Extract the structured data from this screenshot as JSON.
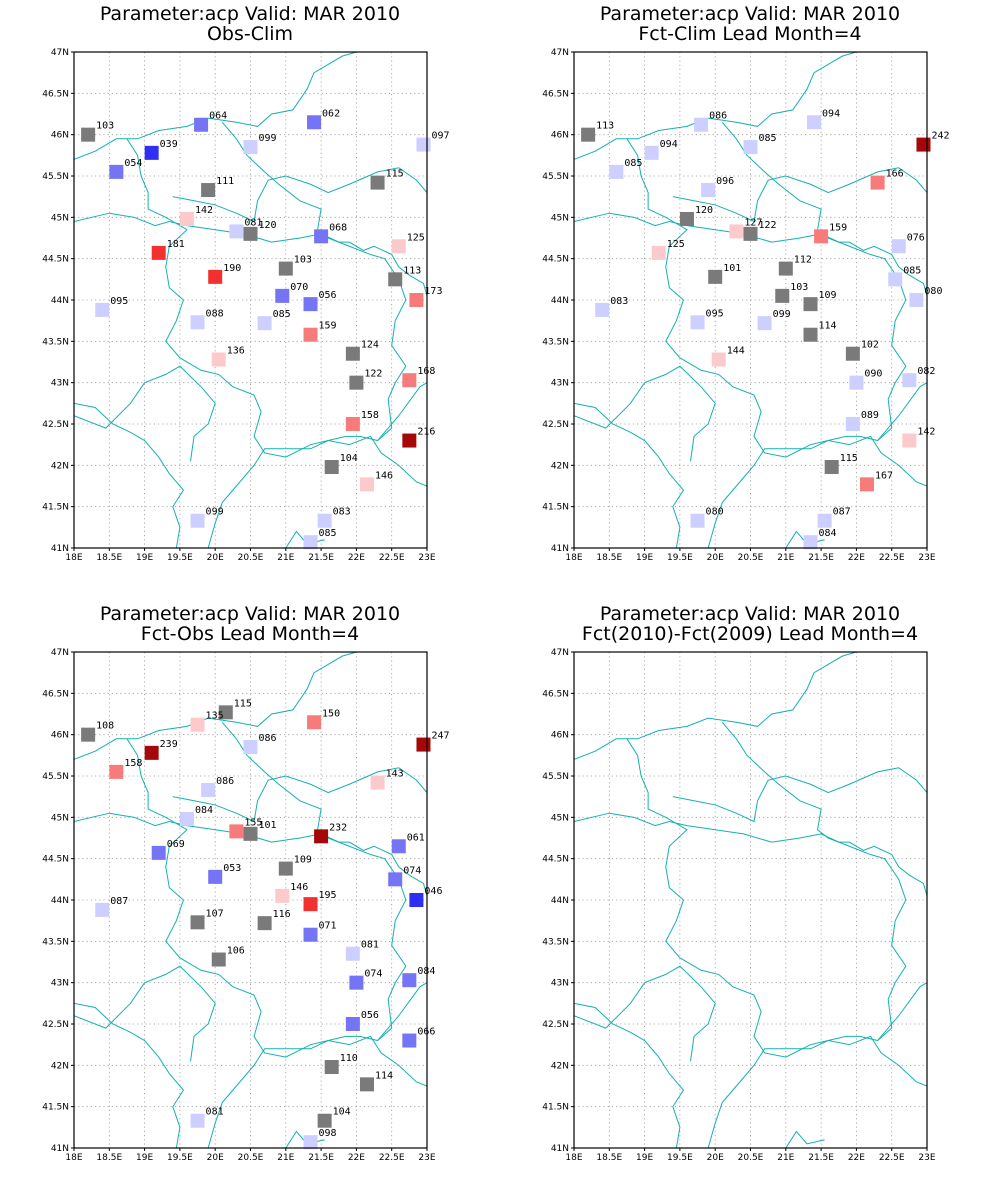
{
  "colors": {
    "neutral": "#7a7a7a",
    "blue_light": "#cccfff",
    "blue_mid": "#7474f4",
    "blue_strong": "#2f2ff2",
    "red_light": "#fccaca",
    "red_mid": "#f77b7b",
    "red_strong": "#f23030",
    "red_dark": "#a50808",
    "coast": "#16b0b0"
  },
  "chart_data": [
    {
      "type": "scatter",
      "title": "Parameter:acp Valid: MAR 2010",
      "subtitle": "Obs-Clim",
      "xlim": [
        18,
        23
      ],
      "ylim": [
        41,
        47
      ],
      "grid": true,
      "xticks": [
        18,
        18.5,
        19,
        19.5,
        20,
        20.5,
        21,
        21.5,
        22,
        22.5,
        23
      ],
      "yticks": [
        41,
        41.5,
        42,
        42.5,
        43,
        43.5,
        44,
        44.5,
        45,
        45.5,
        46,
        46.5,
        47
      ],
      "xticklabels": [
        "18E",
        "18.5E",
        "19E",
        "19.5E",
        "20E",
        "20.5E",
        "21E",
        "21.5E",
        "22E",
        "22.5E",
        "23E"
      ],
      "yticklabels": [
        "41N",
        "41.5N",
        "42N",
        "42.5N",
        "43N",
        "43.5N",
        "44N",
        "44.5N",
        "45N",
        "45.5N",
        "46N",
        "46.5N",
        "47N"
      ],
      "points": [
        {
          "x": 18.2,
          "y": 46.0,
          "label": "103",
          "color": "neutral"
        },
        {
          "x": 19.8,
          "y": 46.12,
          "label": "064",
          "color": "blue_mid"
        },
        {
          "x": 21.4,
          "y": 46.15,
          "label": "062",
          "color": "blue_mid"
        },
        {
          "x": 19.1,
          "y": 45.78,
          "label": "039",
          "color": "blue_strong"
        },
        {
          "x": 20.5,
          "y": 45.85,
          "label": "099",
          "color": "blue_light"
        },
        {
          "x": 22.95,
          "y": 45.88,
          "label": "097",
          "color": "blue_light"
        },
        {
          "x": 18.6,
          "y": 45.55,
          "label": "054",
          "color": "blue_mid"
        },
        {
          "x": 19.9,
          "y": 45.33,
          "label": "111",
          "color": "neutral"
        },
        {
          "x": 22.3,
          "y": 45.42,
          "label": "115",
          "color": "neutral"
        },
        {
          "x": 19.6,
          "y": 44.98,
          "label": "142",
          "color": "red_light"
        },
        {
          "x": 20.3,
          "y": 44.83,
          "label": "081",
          "color": "blue_light"
        },
        {
          "x": 20.5,
          "y": 44.8,
          "label": "120",
          "color": "neutral"
        },
        {
          "x": 21.5,
          "y": 44.77,
          "label": "068",
          "color": "blue_mid"
        },
        {
          "x": 22.6,
          "y": 44.65,
          "label": "125",
          "color": "red_light"
        },
        {
          "x": 19.2,
          "y": 44.57,
          "label": "181",
          "color": "red_strong"
        },
        {
          "x": 20.0,
          "y": 44.28,
          "label": "190",
          "color": "red_strong"
        },
        {
          "x": 21.0,
          "y": 44.38,
          "label": "103",
          "color": "neutral"
        },
        {
          "x": 22.55,
          "y": 44.25,
          "label": "113",
          "color": "neutral"
        },
        {
          "x": 22.85,
          "y": 44.0,
          "label": "173",
          "color": "red_mid"
        },
        {
          "x": 20.95,
          "y": 44.05,
          "label": "070",
          "color": "blue_mid"
        },
        {
          "x": 21.35,
          "y": 43.95,
          "label": "056",
          "color": "blue_mid"
        },
        {
          "x": 18.4,
          "y": 43.88,
          "label": "095",
          "color": "blue_light"
        },
        {
          "x": 19.75,
          "y": 43.73,
          "label": "088",
          "color": "blue_light"
        },
        {
          "x": 20.7,
          "y": 43.72,
          "label": "085",
          "color": "blue_light"
        },
        {
          "x": 21.35,
          "y": 43.58,
          "label": "159",
          "color": "red_mid"
        },
        {
          "x": 21.95,
          "y": 43.35,
          "label": "124",
          "color": "neutral"
        },
        {
          "x": 20.05,
          "y": 43.28,
          "label": "136",
          "color": "red_light"
        },
        {
          "x": 22.0,
          "y": 43.0,
          "label": "122",
          "color": "neutral"
        },
        {
          "x": 22.75,
          "y": 43.03,
          "label": "168",
          "color": "red_mid"
        },
        {
          "x": 21.95,
          "y": 42.5,
          "label": "158",
          "color": "red_mid"
        },
        {
          "x": 22.75,
          "y": 42.3,
          "label": "216",
          "color": "red_dark"
        },
        {
          "x": 21.65,
          "y": 41.98,
          "label": "104",
          "color": "neutral"
        },
        {
          "x": 22.15,
          "y": 41.77,
          "label": "146",
          "color": "red_light"
        },
        {
          "x": 19.75,
          "y": 41.33,
          "label": "099",
          "color": "blue_light"
        },
        {
          "x": 21.55,
          "y": 41.33,
          "label": "083",
          "color": "blue_light"
        },
        {
          "x": 21.35,
          "y": 41.07,
          "label": "085",
          "color": "blue_light"
        }
      ]
    },
    {
      "type": "scatter",
      "title": "Parameter:acp Valid: MAR 2010",
      "subtitle": "Fct-Clim Lead Month=4",
      "xlim": [
        18,
        23
      ],
      "ylim": [
        41,
        47
      ],
      "grid": true,
      "xticks": [
        18,
        18.5,
        19,
        19.5,
        20,
        20.5,
        21,
        21.5,
        22,
        22.5,
        23
      ],
      "yticks": [
        41,
        41.5,
        42,
        42.5,
        43,
        43.5,
        44,
        44.5,
        45,
        45.5,
        46,
        46.5,
        47
      ],
      "xticklabels": [
        "18E",
        "18.5E",
        "19E",
        "19.5E",
        "20E",
        "20.5E",
        "21E",
        "21.5E",
        "22E",
        "22.5E",
        "23E"
      ],
      "yticklabels": [
        "41N",
        "41.5N",
        "42N",
        "42.5N",
        "43N",
        "43.5N",
        "44N",
        "44.5N",
        "45N",
        "45.5N",
        "46N",
        "46.5N",
        "47N"
      ],
      "points": [
        {
          "x": 18.2,
          "y": 46.0,
          "label": "113",
          "color": "neutral"
        },
        {
          "x": 19.8,
          "y": 46.12,
          "label": "086",
          "color": "blue_light"
        },
        {
          "x": 21.4,
          "y": 46.15,
          "label": "094",
          "color": "blue_light"
        },
        {
          "x": 19.1,
          "y": 45.78,
          "label": "094",
          "color": "blue_light"
        },
        {
          "x": 20.5,
          "y": 45.85,
          "label": "085",
          "color": "blue_light"
        },
        {
          "x": 22.95,
          "y": 45.88,
          "label": "242",
          "color": "red_dark"
        },
        {
          "x": 18.6,
          "y": 45.55,
          "label": "085",
          "color": "blue_light"
        },
        {
          "x": 19.9,
          "y": 45.33,
          "label": "096",
          "color": "blue_light"
        },
        {
          "x": 22.3,
          "y": 45.42,
          "label": "166",
          "color": "red_mid"
        },
        {
          "x": 19.6,
          "y": 44.98,
          "label": "120",
          "color": "neutral"
        },
        {
          "x": 20.3,
          "y": 44.83,
          "label": "127",
          "color": "red_light"
        },
        {
          "x": 20.5,
          "y": 44.8,
          "label": "122",
          "color": "neutral"
        },
        {
          "x": 21.5,
          "y": 44.77,
          "label": "159",
          "color": "red_mid"
        },
        {
          "x": 22.6,
          "y": 44.65,
          "label": "076",
          "color": "blue_light"
        },
        {
          "x": 19.2,
          "y": 44.57,
          "label": "125",
          "color": "red_light"
        },
        {
          "x": 20.0,
          "y": 44.28,
          "label": "101",
          "color": "neutral"
        },
        {
          "x": 21.0,
          "y": 44.38,
          "label": "112",
          "color": "neutral"
        },
        {
          "x": 22.55,
          "y": 44.25,
          "label": "085",
          "color": "blue_light"
        },
        {
          "x": 22.85,
          "y": 44.0,
          "label": "080",
          "color": "blue_light"
        },
        {
          "x": 20.95,
          "y": 44.05,
          "label": "103",
          "color": "neutral"
        },
        {
          "x": 21.35,
          "y": 43.95,
          "label": "109",
          "color": "neutral"
        },
        {
          "x": 18.4,
          "y": 43.88,
          "label": "083",
          "color": "blue_light"
        },
        {
          "x": 19.75,
          "y": 43.73,
          "label": "095",
          "color": "blue_light"
        },
        {
          "x": 20.7,
          "y": 43.72,
          "label": "099",
          "color": "blue_light"
        },
        {
          "x": 21.35,
          "y": 43.58,
          "label": "114",
          "color": "neutral"
        },
        {
          "x": 21.95,
          "y": 43.35,
          "label": "102",
          "color": "neutral"
        },
        {
          "x": 20.05,
          "y": 43.28,
          "label": "144",
          "color": "red_light"
        },
        {
          "x": 22.0,
          "y": 43.0,
          "label": "090",
          "color": "blue_light"
        },
        {
          "x": 22.75,
          "y": 43.03,
          "label": "082",
          "color": "blue_light"
        },
        {
          "x": 21.95,
          "y": 42.5,
          "label": "089",
          "color": "blue_light"
        },
        {
          "x": 22.75,
          "y": 42.3,
          "label": "142",
          "color": "red_light"
        },
        {
          "x": 21.65,
          "y": 41.98,
          "label": "115",
          "color": "neutral"
        },
        {
          "x": 22.15,
          "y": 41.77,
          "label": "167",
          "color": "red_mid"
        },
        {
          "x": 19.75,
          "y": 41.33,
          "label": "080",
          "color": "blue_light"
        },
        {
          "x": 21.55,
          "y": 41.33,
          "label": "087",
          "color": "blue_light"
        },
        {
          "x": 21.35,
          "y": 41.07,
          "label": "084",
          "color": "blue_light"
        }
      ]
    },
    {
      "type": "scatter",
      "title": "Parameter:acp Valid: MAR 2010",
      "subtitle": "Fct-Obs Lead Month=4",
      "xlim": [
        18,
        23
      ],
      "ylim": [
        41,
        47
      ],
      "grid": true,
      "xticks": [
        18,
        18.5,
        19,
        19.5,
        20,
        20.5,
        21,
        21.5,
        22,
        22.5,
        23
      ],
      "yticks": [
        41,
        41.5,
        42,
        42.5,
        43,
        43.5,
        44,
        44.5,
        45,
        45.5,
        46,
        46.5,
        47
      ],
      "xticklabels": [
        "18E",
        "18.5E",
        "19E",
        "19.5E",
        "20E",
        "20.5E",
        "21E",
        "21.5E",
        "22E",
        "22.5E",
        "23E"
      ],
      "yticklabels": [
        "41N",
        "41.5N",
        "42N",
        "42.5N",
        "43N",
        "43.5N",
        "44N",
        "44.5N",
        "45N",
        "45.5N",
        "46N",
        "46.5N",
        "47N"
      ],
      "points": [
        {
          "x": 18.2,
          "y": 46.0,
          "label": "108",
          "color": "neutral"
        },
        {
          "x": 20.15,
          "y": 46.27,
          "label": "115",
          "color": "neutral"
        },
        {
          "x": 19.75,
          "y": 46.12,
          "label": "135",
          "color": "red_light"
        },
        {
          "x": 21.4,
          "y": 46.15,
          "label": "150",
          "color": "red_mid"
        },
        {
          "x": 19.1,
          "y": 45.78,
          "label": "239",
          "color": "red_dark"
        },
        {
          "x": 20.5,
          "y": 45.85,
          "label": "086",
          "color": "blue_light"
        },
        {
          "x": 22.95,
          "y": 45.88,
          "label": "247",
          "color": "red_dark"
        },
        {
          "x": 18.6,
          "y": 45.55,
          "label": "158",
          "color": "red_mid"
        },
        {
          "x": 19.9,
          "y": 45.33,
          "label": "086",
          "color": "blue_light"
        },
        {
          "x": 22.3,
          "y": 45.42,
          "label": "143",
          "color": "red_light"
        },
        {
          "x": 19.6,
          "y": 44.98,
          "label": "084",
          "color": "blue_light"
        },
        {
          "x": 20.3,
          "y": 44.83,
          "label": "155",
          "color": "red_mid"
        },
        {
          "x": 20.5,
          "y": 44.8,
          "label": "101",
          "color": "neutral"
        },
        {
          "x": 21.5,
          "y": 44.77,
          "label": "232",
          "color": "red_dark"
        },
        {
          "x": 22.6,
          "y": 44.65,
          "label": "061",
          "color": "blue_mid"
        },
        {
          "x": 19.2,
          "y": 44.57,
          "label": "069",
          "color": "blue_mid"
        },
        {
          "x": 20.0,
          "y": 44.28,
          "label": "053",
          "color": "blue_mid"
        },
        {
          "x": 21.0,
          "y": 44.38,
          "label": "109",
          "color": "neutral"
        },
        {
          "x": 22.55,
          "y": 44.25,
          "label": "074",
          "color": "blue_mid"
        },
        {
          "x": 22.85,
          "y": 44.0,
          "label": "046",
          "color": "blue_strong"
        },
        {
          "x": 20.95,
          "y": 44.05,
          "label": "146",
          "color": "red_light"
        },
        {
          "x": 21.35,
          "y": 43.95,
          "label": "195",
          "color": "red_strong"
        },
        {
          "x": 18.4,
          "y": 43.88,
          "label": "087",
          "color": "blue_light"
        },
        {
          "x": 19.75,
          "y": 43.73,
          "label": "107",
          "color": "neutral"
        },
        {
          "x": 20.7,
          "y": 43.72,
          "label": "116",
          "color": "neutral"
        },
        {
          "x": 21.35,
          "y": 43.58,
          "label": "071",
          "color": "blue_mid"
        },
        {
          "x": 21.95,
          "y": 43.35,
          "label": "081",
          "color": "blue_light"
        },
        {
          "x": 20.05,
          "y": 43.28,
          "label": "106",
          "color": "neutral"
        },
        {
          "x": 22.0,
          "y": 43.0,
          "label": "074",
          "color": "blue_mid"
        },
        {
          "x": 22.75,
          "y": 43.03,
          "label": "084",
          "color": "blue_mid"
        },
        {
          "x": 21.95,
          "y": 42.5,
          "label": "056",
          "color": "blue_mid"
        },
        {
          "x": 22.75,
          "y": 42.3,
          "label": "066",
          "color": "blue_mid"
        },
        {
          "x": 21.65,
          "y": 41.98,
          "label": "110",
          "color": "neutral"
        },
        {
          "x": 22.15,
          "y": 41.77,
          "label": "114",
          "color": "neutral"
        },
        {
          "x": 19.75,
          "y": 41.33,
          "label": "081",
          "color": "blue_light"
        },
        {
          "x": 21.55,
          "y": 41.33,
          "label": "104",
          "color": "neutral"
        },
        {
          "x": 21.35,
          "y": 41.07,
          "label": "098",
          "color": "blue_light"
        }
      ]
    },
    {
      "type": "scatter",
      "title": "Parameter:acp Valid: MAR 2010",
      "subtitle": "Fct(2010)-Fct(2009) Lead Month=4",
      "xlim": [
        18,
        23
      ],
      "ylim": [
        41,
        47
      ],
      "grid": true,
      "xticks": [
        18,
        18.5,
        19,
        19.5,
        20,
        20.5,
        21,
        21.5,
        22,
        22.5,
        23
      ],
      "yticks": [
        41,
        41.5,
        42,
        42.5,
        43,
        43.5,
        44,
        44.5,
        45,
        45.5,
        46,
        46.5,
        47
      ],
      "xticklabels": [
        "18E",
        "18.5E",
        "19E",
        "19.5E",
        "20E",
        "20.5E",
        "21E",
        "21.5E",
        "22E",
        "22.5E",
        "23E"
      ],
      "yticklabels": [
        "41N",
        "41.5N",
        "42N",
        "42.5N",
        "43N",
        "43.5N",
        "44N",
        "44.5N",
        "45N",
        "45.5N",
        "46N",
        "46.5N",
        "47N"
      ],
      "points": []
    }
  ]
}
